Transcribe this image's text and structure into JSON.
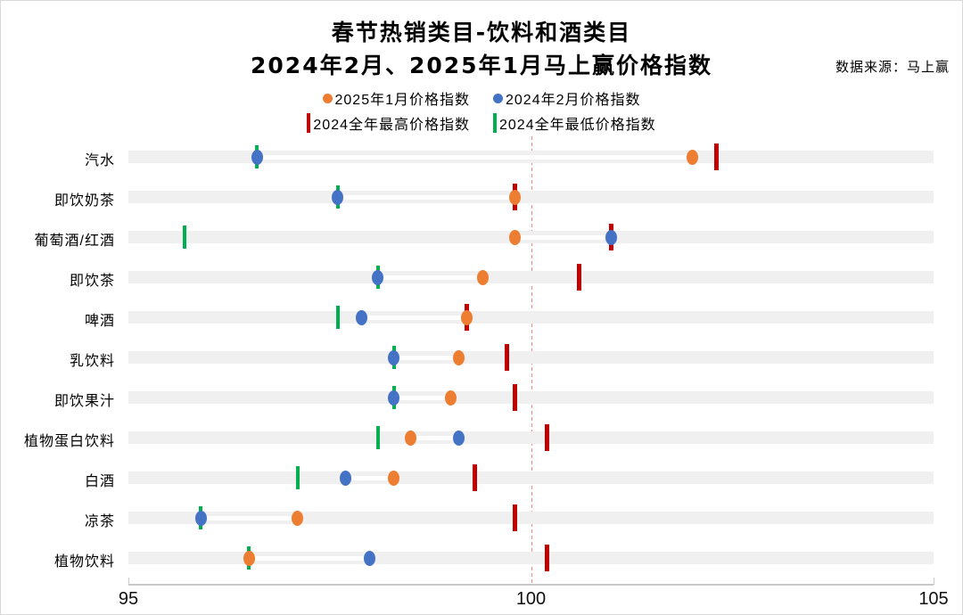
{
  "title": {
    "line1": "春节热销类目-饮料和酒类目",
    "line2": "2024年2月、2025年1月马上赢价格指数"
  },
  "source": "数据来源：马上赢",
  "colors": {
    "jan2025_orange": "#ED7D31",
    "feb2024_blue": "#4472C4",
    "max_red": "#C00000",
    "min_green": "#00B050",
    "reference_line": "#FF8585",
    "row_band": "#F0F0F0",
    "axis": "#C9C9C9"
  },
  "legend": [
    {
      "label": "2025年1月价格指数",
      "marker": "dot",
      "color": "#ED7D31"
    },
    {
      "label": "2024年2月价格指数",
      "marker": "dot",
      "color": "#4472C4"
    },
    {
      "label": "2024全年最高价格指数",
      "marker": "bar",
      "color": "#C00000"
    },
    {
      "label": "2024全年最低价格指数",
      "marker": "bar",
      "color": "#00B050"
    }
  ],
  "chart_data": {
    "type": "scatter",
    "orientation": "horizontal-dotplot",
    "categories": [
      "汽水",
      "即饮奶茶",
      "葡萄酒/红酒",
      "即饮茶",
      "啤酒",
      "乳饮料",
      "即饮果汁",
      "植物蛋白饮料",
      "白酒",
      "凉茶",
      "植物饮料"
    ],
    "series": [
      {
        "name": "2025年1月价格指数",
        "marker": "dot",
        "color": "#ED7D31",
        "values": [
          102.0,
          99.8,
          99.8,
          99.4,
          99.2,
          99.1,
          99.0,
          98.5,
          98.3,
          97.1,
          96.5
        ]
      },
      {
        "name": "2024年2月价格指数",
        "marker": "dot",
        "color": "#4472C4",
        "values": [
          96.6,
          97.6,
          101.0,
          98.1,
          97.9,
          98.3,
          98.3,
          99.1,
          97.7,
          95.9,
          98.0
        ]
      },
      {
        "name": "2024全年最高价格指数",
        "marker": "tick",
        "color": "#C00000",
        "values": [
          102.3,
          99.8,
          101.0,
          100.6,
          99.2,
          99.7,
          99.8,
          100.2,
          99.3,
          99.8,
          100.2
        ]
      },
      {
        "name": "2024全年最低价格指数",
        "marker": "tick",
        "color": "#00B050",
        "values": [
          96.6,
          97.6,
          95.7,
          98.1,
          97.6,
          98.3,
          98.3,
          98.1,
          97.1,
          95.9,
          96.5
        ]
      }
    ],
    "x_axis": {
      "min": 95,
      "max": 105,
      "tick_labels": [
        "95",
        "100",
        "105"
      ],
      "tick_values": [
        95,
        100,
        105
      ]
    },
    "reference_line": {
      "value": 100,
      "style": "dashed"
    },
    "grid": "row-bands",
    "legend_position": "top-center"
  }
}
